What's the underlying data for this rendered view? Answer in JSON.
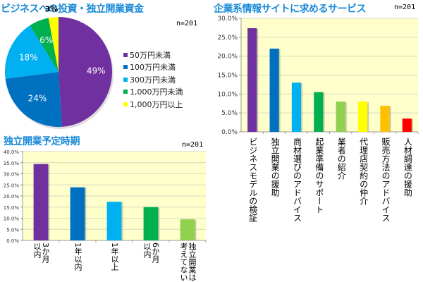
{
  "chart_data": [
    {
      "id": "pie",
      "type": "pie",
      "title": "ビジネスへの投資・独立開業資金",
      "n_label": "n=201",
      "legend_position": "right",
      "slices": [
        {
          "label": "50万円未満",
          "value": 49,
          "value_label": "49%",
          "color": "#7030a0"
        },
        {
          "label": "100万円未満",
          "value": 24,
          "value_label": "24%",
          "color": "#0070c0"
        },
        {
          "label": "300万円未満",
          "value": 18,
          "value_label": "18%",
          "color": "#00b0f0"
        },
        {
          "label": "1,000万円未満",
          "value": 6,
          "value_label": "6%",
          "color": "#00b050"
        },
        {
          "label": "1,000万円以上",
          "value": 3,
          "value_label": "3%",
          "color": "#ffff00"
        }
      ]
    },
    {
      "id": "services",
      "type": "bar",
      "title": "企業系情報サイトに求めるサービス",
      "n_label": "n=201",
      "xlabel": "",
      "ylabel": "",
      "ylim": [
        0,
        30
      ],
      "yticks": [
        "0.0%",
        "5.0%",
        "10.0%",
        "15.0%",
        "20.0%",
        "25.0%",
        "30.0%"
      ],
      "grid": true,
      "categories": [
        "ビジネスモデルの検証",
        "独立開業の援助",
        "商材選びのアドバイス",
        "起業準備のサポート",
        "業者の紹介",
        "代理店契約の仲介",
        "販売方法のアドバイス",
        "人材調達の援助"
      ],
      "values": [
        27.4,
        22.0,
        13.0,
        10.5,
        8.0,
        8.0,
        6.9,
        3.5
      ],
      "colors": [
        "#7030a0",
        "#0070c0",
        "#00b0f0",
        "#00b050",
        "#92d050",
        "#ffff00",
        "#ffc000",
        "#ff0000"
      ]
    },
    {
      "id": "timing",
      "type": "bar",
      "title": "独立開業予定時期",
      "n_label": "n=201",
      "xlabel": "",
      "ylabel": "",
      "ylim": [
        0,
        40
      ],
      "yticks": [
        "0.0%",
        "5.0%",
        "10.0%",
        "15.0%",
        "20.0%",
        "25.0%",
        "30.0%",
        "35.0%",
        "40.0%"
      ],
      "grid": true,
      "categories": [
        "3か月以内",
        "1年以内",
        "1年以上",
        "6か月以内",
        "独立開業は考えてない"
      ],
      "category_lines": [
        [
          "以内",
          "3か月"
        ],
        [
          "1年以内"
        ],
        [
          "1年以上"
        ],
        [
          "以内",
          "6か月"
        ],
        [
          "考えてない",
          "独立開業は"
        ]
      ],
      "values": [
        34.4,
        23.9,
        17.4,
        15.0,
        9.5
      ],
      "colors": [
        "#7030a0",
        "#0070c0",
        "#00b0f0",
        "#00b050",
        "#92d050"
      ]
    }
  ],
  "colors": {
    "title": "#1a8ad8",
    "plot_bg": "#ffffcc",
    "grid": "#d8d8c0"
  }
}
